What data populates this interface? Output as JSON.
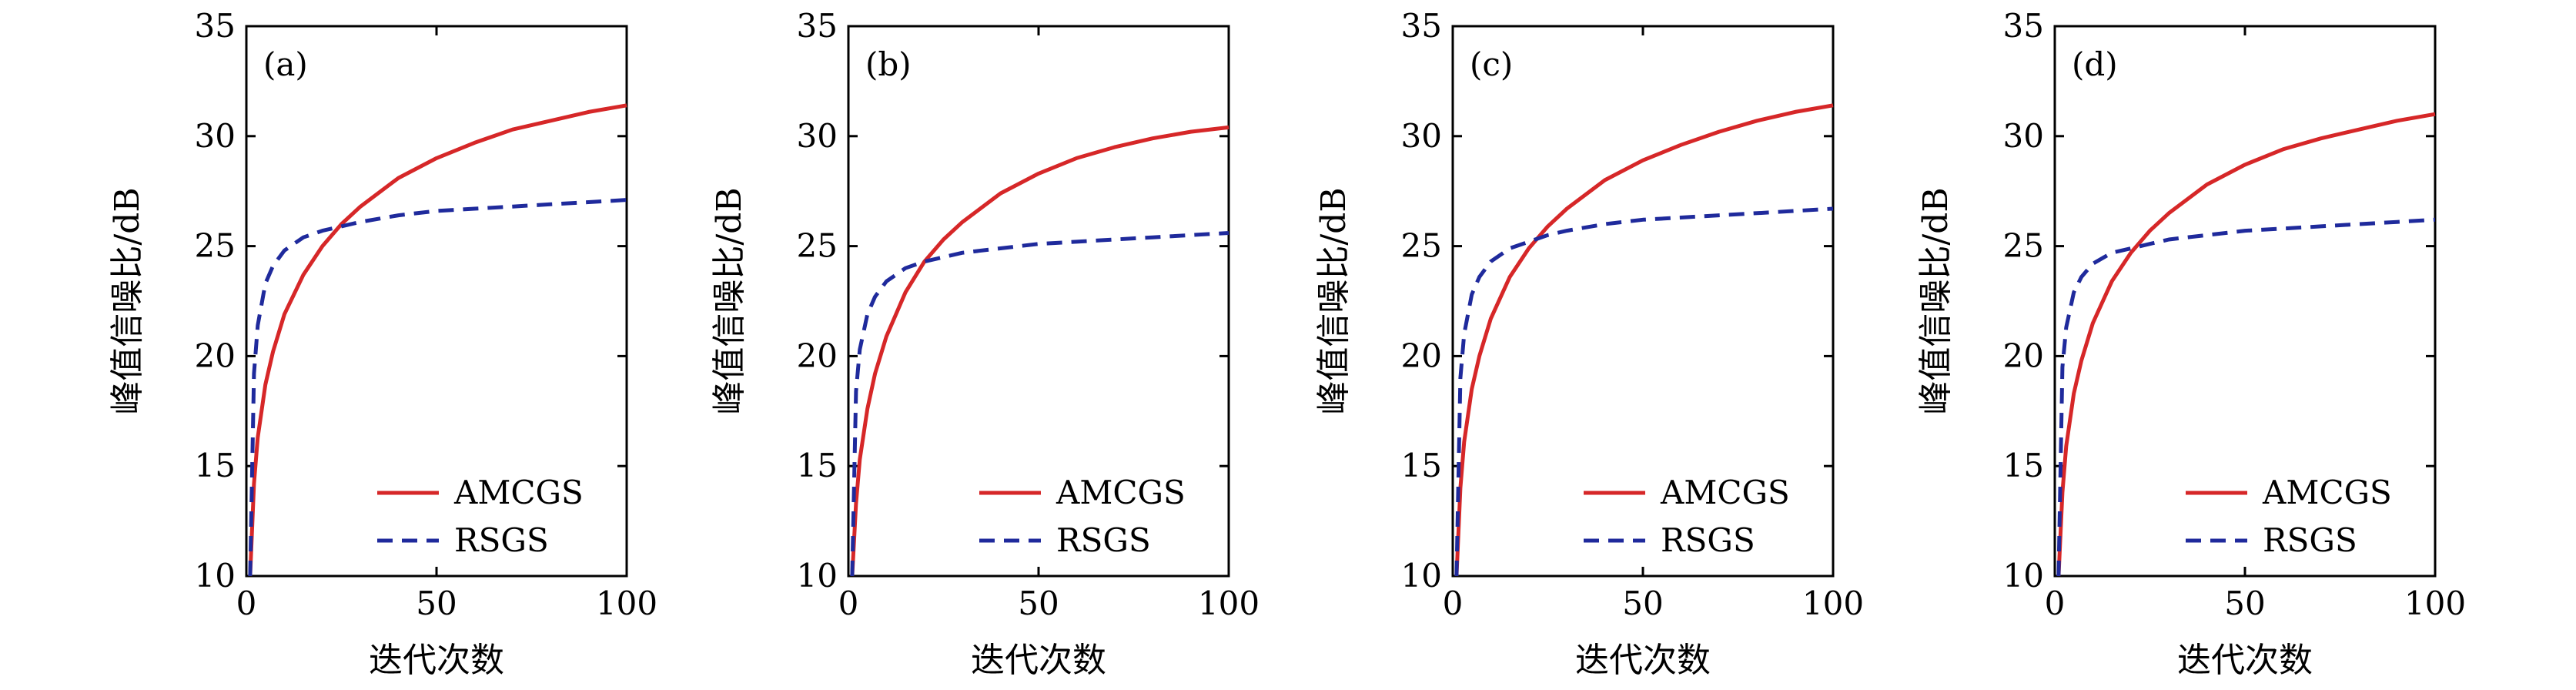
{
  "chart_data": [
    {
      "type": "line",
      "panel_label": "(a)",
      "xlabel": "迭代次数",
      "ylabel": "峰值信噪比/dB",
      "xlim": [
        0,
        100
      ],
      "ylim": [
        10,
        35
      ],
      "xticks": [
        "0",
        "50",
        "100"
      ],
      "yticks": [
        "10",
        "15",
        "20",
        "25",
        "30",
        "35"
      ],
      "legend_position": "bottom-right",
      "series": [
        {
          "name": "AMCGS",
          "color": "#d62728",
          "style": "solid",
          "x": [
            1,
            2,
            3,
            5,
            7,
            10,
            15,
            20,
            25,
            30,
            40,
            50,
            60,
            70,
            80,
            90,
            100
          ],
          "values": [
            10.0,
            14.2,
            16.3,
            18.7,
            20.2,
            21.9,
            23.7,
            25.0,
            26.0,
            26.8,
            28.1,
            29.0,
            29.7,
            30.3,
            30.7,
            31.1,
            31.4
          ]
        },
        {
          "name": "RSGS",
          "color": "#1f2a9c",
          "style": "dashed",
          "x": [
            1,
            2,
            3,
            5,
            7,
            10,
            15,
            20,
            25,
            30,
            40,
            50,
            60,
            70,
            80,
            90,
            100
          ],
          "values": [
            10.0,
            19.2,
            21.4,
            23.3,
            24.1,
            24.8,
            25.4,
            25.7,
            25.9,
            26.1,
            26.4,
            26.6,
            26.7,
            26.8,
            26.9,
            27.0,
            27.1
          ]
        }
      ]
    },
    {
      "type": "line",
      "panel_label": "(b)",
      "xlabel": "迭代次数",
      "ylabel": "峰值信噪比/dB",
      "xlim": [
        0,
        100
      ],
      "ylim": [
        10,
        35
      ],
      "xticks": [
        "0",
        "50",
        "100"
      ],
      "yticks": [
        "10",
        "15",
        "20",
        "25",
        "30",
        "35"
      ],
      "legend_position": "bottom-right",
      "series": [
        {
          "name": "AMCGS",
          "color": "#d62728",
          "style": "solid",
          "x": [
            1,
            2,
            3,
            5,
            7,
            10,
            15,
            20,
            25,
            30,
            40,
            50,
            60,
            70,
            80,
            90,
            100
          ],
          "values": [
            10.0,
            13.3,
            15.3,
            17.6,
            19.2,
            20.9,
            22.9,
            24.3,
            25.3,
            26.1,
            27.4,
            28.3,
            29.0,
            29.5,
            29.9,
            30.2,
            30.4
          ]
        },
        {
          "name": "RSGS",
          "color": "#1f2a9c",
          "style": "dashed",
          "x": [
            1,
            2,
            3,
            5,
            7,
            10,
            15,
            20,
            25,
            30,
            40,
            50,
            60,
            70,
            80,
            90,
            100
          ],
          "values": [
            10.0,
            18.4,
            20.3,
            21.9,
            22.7,
            23.4,
            24.0,
            24.3,
            24.5,
            24.7,
            24.9,
            25.1,
            25.2,
            25.3,
            25.4,
            25.5,
            25.6
          ]
        }
      ]
    },
    {
      "type": "line",
      "panel_label": "(c)",
      "xlabel": "迭代次数",
      "ylabel": "峰值信噪比/dB",
      "xlim": [
        0,
        100
      ],
      "ylim": [
        10,
        35
      ],
      "xticks": [
        "0",
        "50",
        "100"
      ],
      "yticks": [
        "10",
        "15",
        "20",
        "25",
        "30",
        "35"
      ],
      "legend_position": "bottom-right",
      "series": [
        {
          "name": "AMCGS",
          "color": "#d62728",
          "style": "solid",
          "x": [
            1,
            2,
            3,
            5,
            7,
            10,
            15,
            20,
            25,
            30,
            40,
            50,
            60,
            70,
            80,
            90,
            100
          ],
          "values": [
            10.0,
            14.0,
            16.1,
            18.5,
            20.0,
            21.7,
            23.6,
            24.9,
            25.9,
            26.7,
            28.0,
            28.9,
            29.6,
            30.2,
            30.7,
            31.1,
            31.4
          ]
        },
        {
          "name": "RSGS",
          "color": "#1f2a9c",
          "style": "dashed",
          "x": [
            1,
            2,
            3,
            5,
            7,
            10,
            15,
            20,
            25,
            30,
            40,
            50,
            60,
            70,
            80,
            90,
            100
          ],
          "values": [
            10.0,
            19.0,
            21.0,
            22.8,
            23.6,
            24.3,
            24.9,
            25.2,
            25.5,
            25.7,
            26.0,
            26.2,
            26.3,
            26.4,
            26.5,
            26.6,
            26.7
          ]
        }
      ]
    },
    {
      "type": "line",
      "panel_label": "(d)",
      "xlabel": "迭代次数",
      "ylabel": "峰值信噪比/dB",
      "xlim": [
        0,
        100
      ],
      "ylim": [
        10,
        35
      ],
      "xticks": [
        "0",
        "50",
        "100"
      ],
      "yticks": [
        "10",
        "15",
        "20",
        "25",
        "30",
        "35"
      ],
      "legend_position": "bottom-right",
      "series": [
        {
          "name": "AMCGS",
          "color": "#d62728",
          "style": "solid",
          "x": [
            1,
            2,
            3,
            5,
            7,
            10,
            15,
            20,
            25,
            30,
            40,
            50,
            60,
            70,
            80,
            90,
            100
          ],
          "values": [
            10.0,
            13.8,
            15.9,
            18.3,
            19.8,
            21.5,
            23.4,
            24.7,
            25.7,
            26.5,
            27.8,
            28.7,
            29.4,
            29.9,
            30.3,
            30.7,
            31.0
          ]
        },
        {
          "name": "RSGS",
          "color": "#1f2a9c",
          "style": "dashed",
          "x": [
            1,
            2,
            3,
            5,
            7,
            10,
            15,
            20,
            25,
            30,
            40,
            50,
            60,
            70,
            80,
            90,
            100
          ],
          "values": [
            10.0,
            19.5,
            21.3,
            22.9,
            23.6,
            24.2,
            24.7,
            24.9,
            25.1,
            25.3,
            25.5,
            25.7,
            25.8,
            25.9,
            26.0,
            26.1,
            26.2
          ]
        }
      ]
    }
  ]
}
